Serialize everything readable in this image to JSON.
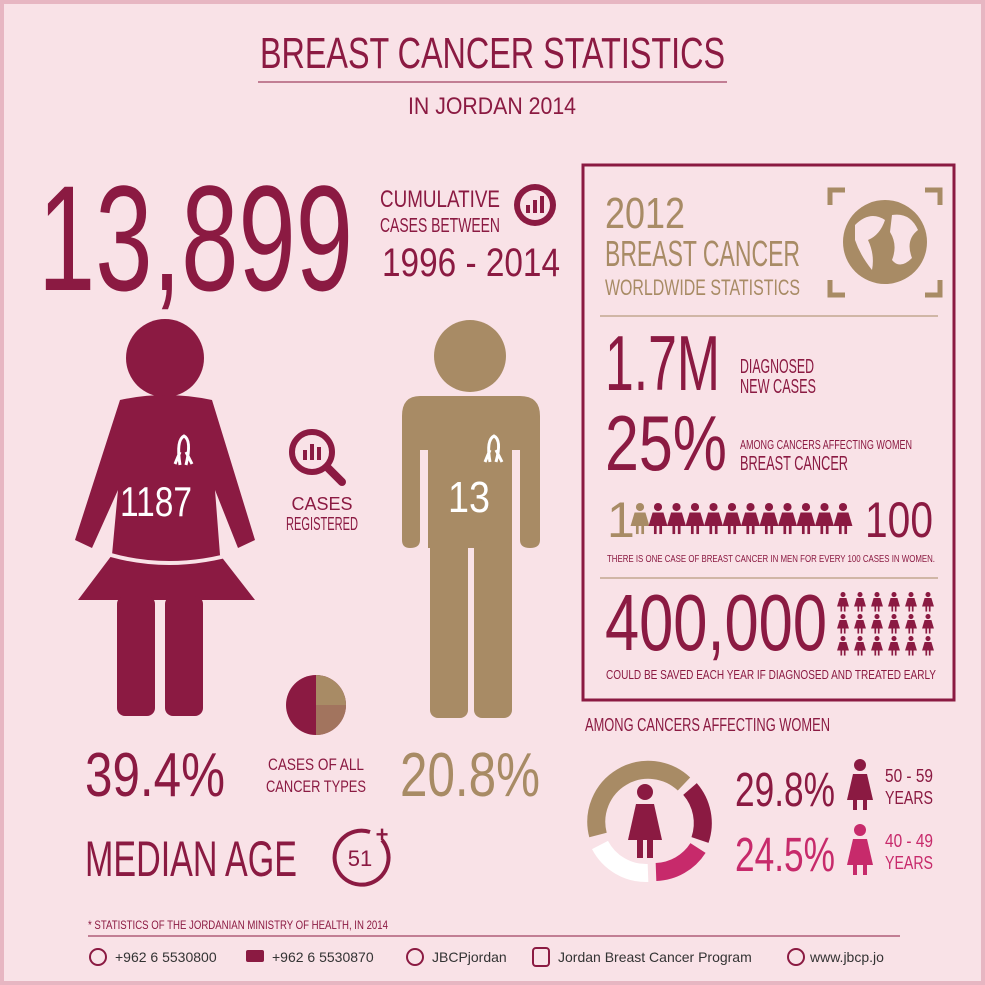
{
  "header": {
    "title": "BREAST CANCER STATISTICS",
    "subtitle": "IN JORDAN 2014"
  },
  "cumulative": {
    "number": "13,899",
    "label": [
      "CUMULATIVE",
      "CASES BETWEEN"
    ],
    "years": "1996 - 2014"
  },
  "female": {
    "count": "1187",
    "percent": "39.4%"
  },
  "male": {
    "count": "13",
    "percent": "20.8%"
  },
  "cases_registered": [
    "CASES",
    "REGISTERED"
  ],
  "cases_all_types": [
    "CASES OF ALL",
    "CANCER TYPES"
  ],
  "median_age": {
    "label": "MEDIAN AGE",
    "value": "51"
  },
  "worldwide": {
    "year": "2012",
    "title": "BREAST CANCER",
    "subtitle": "WORLDWIDE STATISTICS",
    "diagnosed": {
      "value": "1.7M",
      "label": [
        "DIAGNOSED",
        "NEW CASES"
      ]
    },
    "share": {
      "value": "25%",
      "label": [
        "AMONG CANCERS AFFECTING WOMEN",
        "BREAST CANCER"
      ]
    },
    "ratio": {
      "men": "1",
      "women": "100",
      "note": "THERE IS ONE CASE OF BREAST CANCER IN MEN FOR EVERY 100 CASES IN WOMEN."
    },
    "saved": {
      "value": "400,000",
      "note": "COULD BE SAVED EACH YEAR  IF DIAGNOSED AND TREATED EARLY"
    }
  },
  "age_groups": {
    "title": "AMONG CANCERS AFFECTING WOMEN",
    "groups": [
      {
        "percent": "29.8%",
        "range": "50 - 59",
        "unit": "YEARS"
      },
      {
        "percent": "24.5%",
        "range": "40 - 49",
        "unit": "YEARS"
      }
    ]
  },
  "footnote": "* STATISTICS OF THE JORDANIAN MINISTRY OF HEALTH, IN 2014",
  "contacts": [
    "+962 6 5530800",
    "+962 6 5530870",
    "JBCPjordan",
    "Jordan Breast Cancer Program",
    "www.jbcp.jo"
  ]
}
